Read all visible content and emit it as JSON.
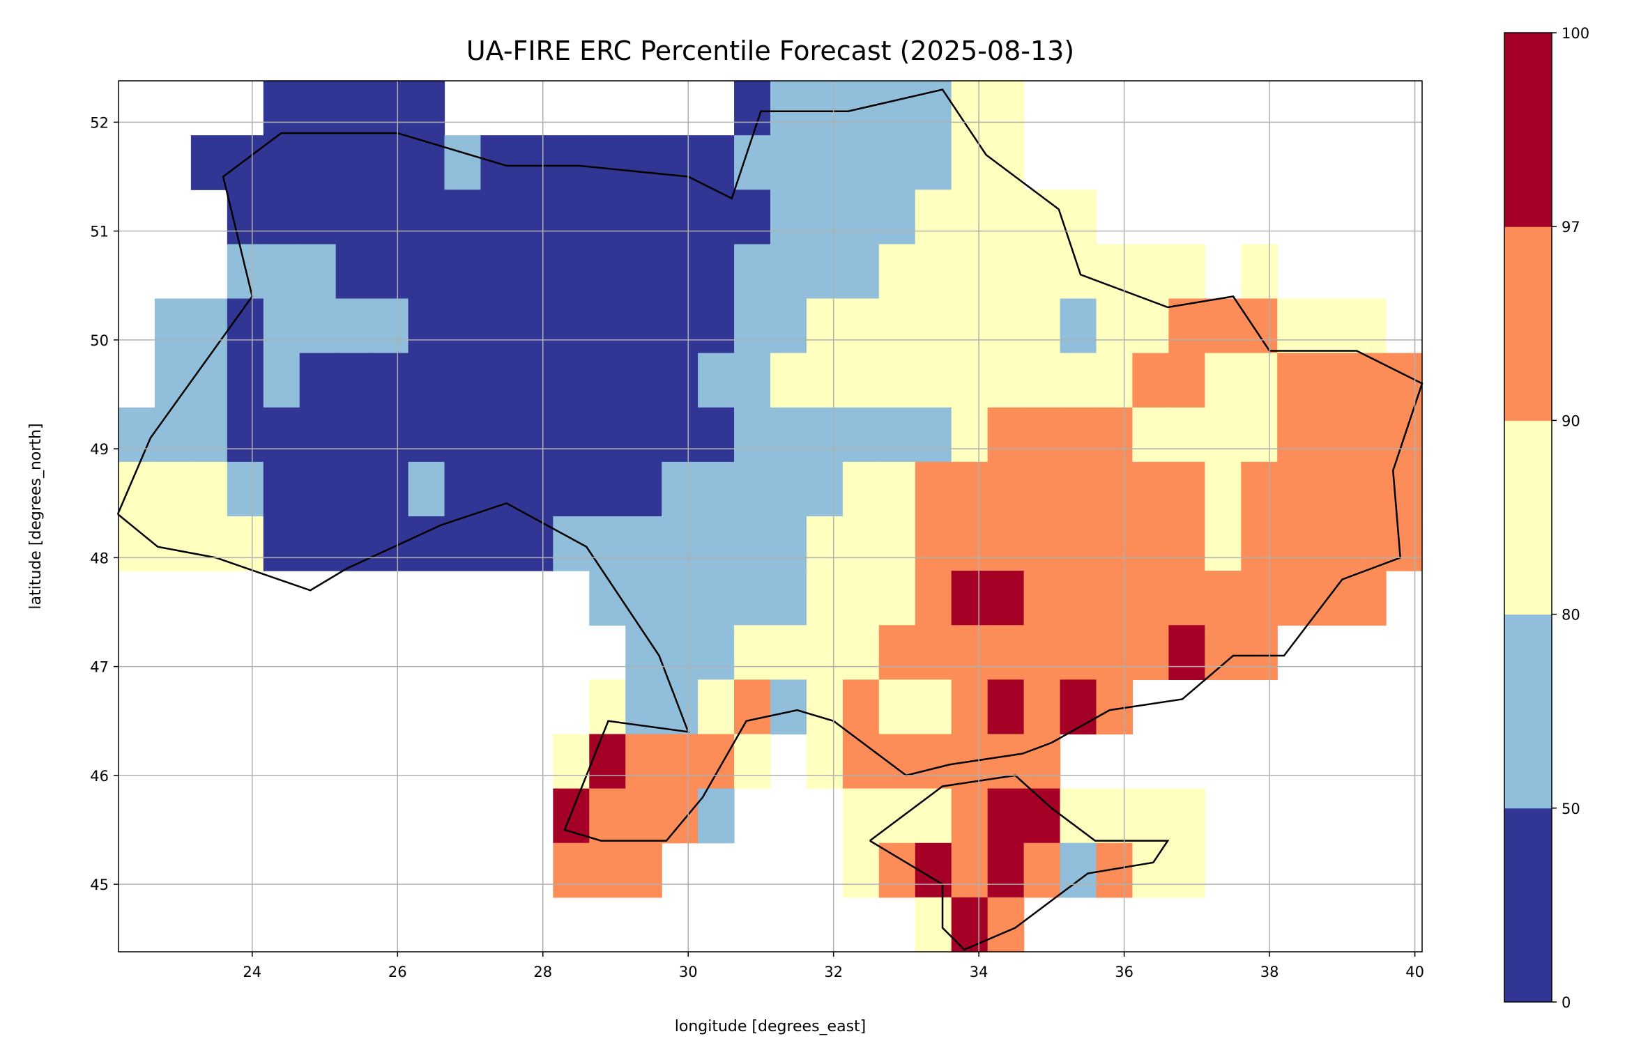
{
  "chart_data": {
    "type": "heatmap",
    "title": "UA-FIRE ERC Percentile Forecast (2025-08-13)",
    "xlabel": "longitude [degrees_east]",
    "ylabel": "latitude [degrees_north]",
    "xlim": [
      22.16,
      40.1
    ],
    "ylim": [
      44.38,
      52.38
    ],
    "xticks": [
      "24",
      "26",
      "28",
      "30",
      "32",
      "34",
      "36",
      "38",
      "40"
    ],
    "yticks": [
      "45",
      "46",
      "47",
      "48",
      "49",
      "50",
      "51",
      "52"
    ],
    "grid": true,
    "cell_size_degrees": 0.5,
    "legend": {
      "type": "colorbar",
      "placement": "right",
      "bounds": [
        "0",
        "50",
        "80",
        "90",
        "97",
        "100"
      ],
      "colors": [
        "#313695",
        "#91bfdb",
        "#ffffbf",
        "#fc8d59",
        "#a50026"
      ]
    },
    "category_key": {
      "0": "0-50",
      "1": "50-80",
      "2": "80-90",
      "3": "90-97",
      "4": "97-100",
      ".": "no data"
    },
    "rows_north_to_south": [
      "....00000........0111112 2...........",
      "..00000001000000011111122...........",
      "...000000000000000111122222.........",
      "...111000000000001111222222222.2.....",
      ".110111100000000011222222212233322 2..",
      ".1101000000000001122222222223322 3333",
      "11100000000000000111111233332222 33333",
      "22210000100000011111223333333323 33333",
      "222200000000111111122233333333233333",
      ".............11111122234433333333 33.",
      "..............11122223333333343 3...",
      ".............211231232234343........",
      "............243332.2333333.........",
      "............43331...22234422 22......",
      "............333.....2343431322......",
      "......................243..........."
    ]
  }
}
